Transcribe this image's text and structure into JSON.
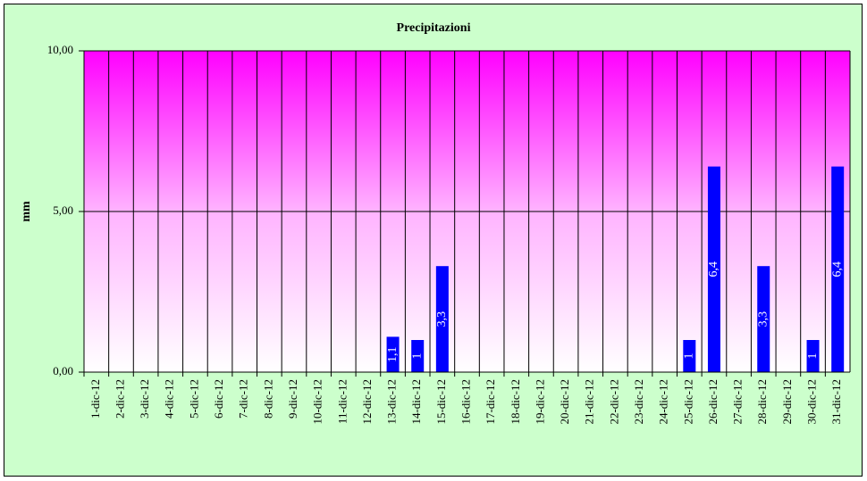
{
  "chart_data": {
    "type": "bar",
    "title": "Precipitazioni",
    "y_label": "mm",
    "categories": [
      "1-dic-12",
      "2-dic-12",
      "3-dic-12",
      "4-dic-12",
      "5-dic-12",
      "6-dic-12",
      "7-dic-12",
      "8-dic-12",
      "9-dic-12",
      "10-dic-12",
      "11-dic-12",
      "12-dic-12",
      "13-dic-12",
      "14-dic-12",
      "15-dic-12",
      "16-dic-12",
      "17-dic-12",
      "18-dic-12",
      "19-dic-12",
      "20-dic-12",
      "21-dic-12",
      "22-dic-12",
      "23-dic-12",
      "24-dic-12",
      "25-dic-12",
      "26-dic-12",
      "27-dic-12",
      "28-dic-12",
      "29-dic-12",
      "30-dic-12",
      "31-dic-12"
    ],
    "values": [
      0,
      0,
      0,
      0,
      0,
      0,
      0,
      0,
      0,
      0,
      0,
      0,
      1.1,
      1,
      3.3,
      0,
      0,
      0,
      0,
      0,
      0,
      0,
      0,
      0,
      1,
      6.4,
      0,
      3.3,
      0,
      1,
      6.4
    ],
    "value_labels": [
      null,
      null,
      null,
      null,
      null,
      null,
      null,
      null,
      null,
      null,
      null,
      null,
      "1,1",
      "1",
      "3,3",
      null,
      null,
      null,
      null,
      null,
      null,
      null,
      null,
      null,
      "1",
      "6,4",
      null,
      "3,3",
      null,
      "1",
      "6,4"
    ],
    "color": "#0000ff",
    "ylim": [
      0,
      10
    ],
    "yticks": [
      {
        "value": 0,
        "label": "0,00"
      },
      {
        "value": 5,
        "label": "5,00"
      },
      {
        "value": 10,
        "label": "10,00"
      }
    ],
    "grid": true
  }
}
